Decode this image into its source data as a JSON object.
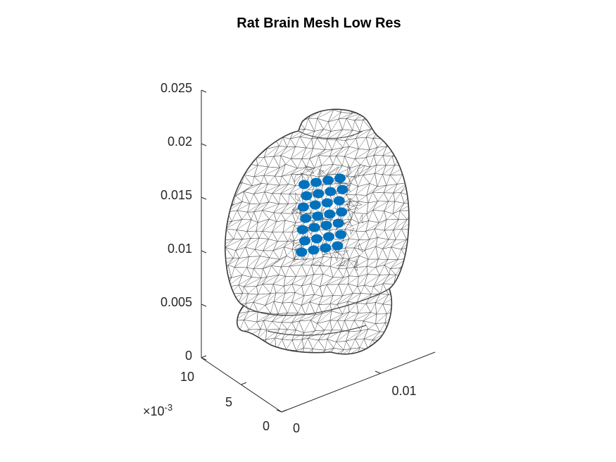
{
  "chart_data": {
    "type": "3d-mesh-scatter",
    "title": "Rat Brain Mesh Low Res",
    "z_ticks": [
      "0.025",
      "0.02",
      "0.015",
      "0.01",
      "0.005",
      "0"
    ],
    "y_ticks": [
      "10",
      "5",
      "0"
    ],
    "y_exponent_base": "×10",
    "y_exponent_power": "-3",
    "x_ticks": [
      "0",
      "0.01"
    ],
    "zlim": [
      0,
      0.025
    ],
    "ylim": [
      0,
      0.01
    ],
    "mesh_color": "#4a4a4a",
    "marker_color": "#0072BD",
    "grid": false,
    "electrode_rows": 7,
    "electrode_cols": 4
  }
}
